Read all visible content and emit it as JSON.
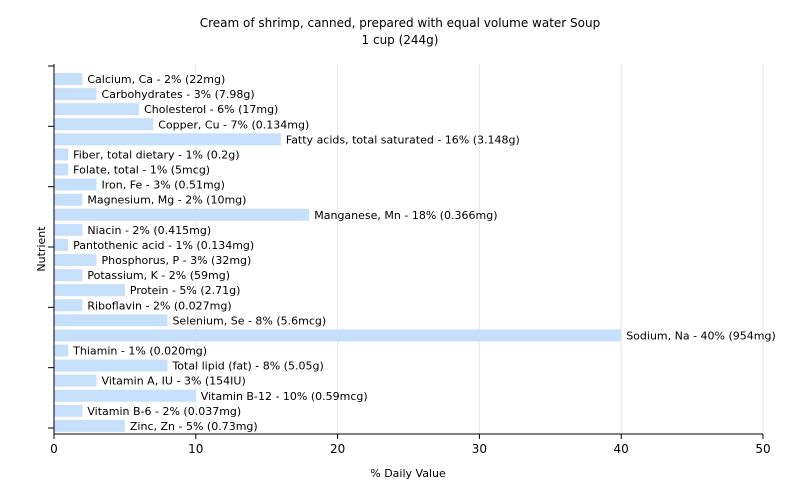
{
  "chart_data": {
    "type": "bar",
    "orientation": "horizontal",
    "title": "Cream of shrimp, canned, prepared with equal volume water Soup",
    "subtitle": "1 cup (244g)",
    "xlabel": "% Daily Value",
    "ylabel": "Nutrient",
    "xlim": [
      0,
      50
    ],
    "xticks": [
      0,
      10,
      20,
      30,
      40,
      50
    ],
    "grid": true,
    "legend": "none",
    "bar_color": "#c6dffb",
    "bars": [
      {
        "label": "Calcium, Ca - 2% (22mg)",
        "value": 2
      },
      {
        "label": "Carbohydrates - 3% (7.98g)",
        "value": 3
      },
      {
        "label": "Cholesterol - 6% (17mg)",
        "value": 6
      },
      {
        "label": "Copper, Cu - 7% (0.134mg)",
        "value": 7
      },
      {
        "label": "Fatty acids, total saturated - 16% (3.148g)",
        "value": 16
      },
      {
        "label": "Fiber, total dietary - 1% (0.2g)",
        "value": 1
      },
      {
        "label": "Folate, total - 1% (5mcg)",
        "value": 1
      },
      {
        "label": "Iron, Fe - 3% (0.51mg)",
        "value": 3
      },
      {
        "label": "Magnesium, Mg - 2% (10mg)",
        "value": 2
      },
      {
        "label": "Manganese, Mn - 18% (0.366mg)",
        "value": 18
      },
      {
        "label": "Niacin - 2% (0.415mg)",
        "value": 2
      },
      {
        "label": "Pantothenic acid - 1% (0.134mg)",
        "value": 1
      },
      {
        "label": "Phosphorus, P - 3% (32mg)",
        "value": 3
      },
      {
        "label": "Potassium, K - 2% (59mg)",
        "value": 2
      },
      {
        "label": "Protein - 5% (2.71g)",
        "value": 5
      },
      {
        "label": "Riboflavin - 2% (0.027mg)",
        "value": 2
      },
      {
        "label": "Selenium, Se - 8% (5.6mcg)",
        "value": 8
      },
      {
        "label": "Sodium, Na - 40% (954mg)",
        "value": 40
      },
      {
        "label": "Thiamin - 1% (0.020mg)",
        "value": 1
      },
      {
        "label": "Total lipid (fat) - 8% (5.05g)",
        "value": 8
      },
      {
        "label": "Vitamin A, IU - 3% (154IU)",
        "value": 3
      },
      {
        "label": "Vitamin B-12 - 10% (0.59mcg)",
        "value": 10
      },
      {
        "label": "Vitamin B-6 - 2% (0.037mg)",
        "value": 2
      },
      {
        "label": "Zinc, Zn - 5% (0.73mg)",
        "value": 5
      }
    ]
  }
}
